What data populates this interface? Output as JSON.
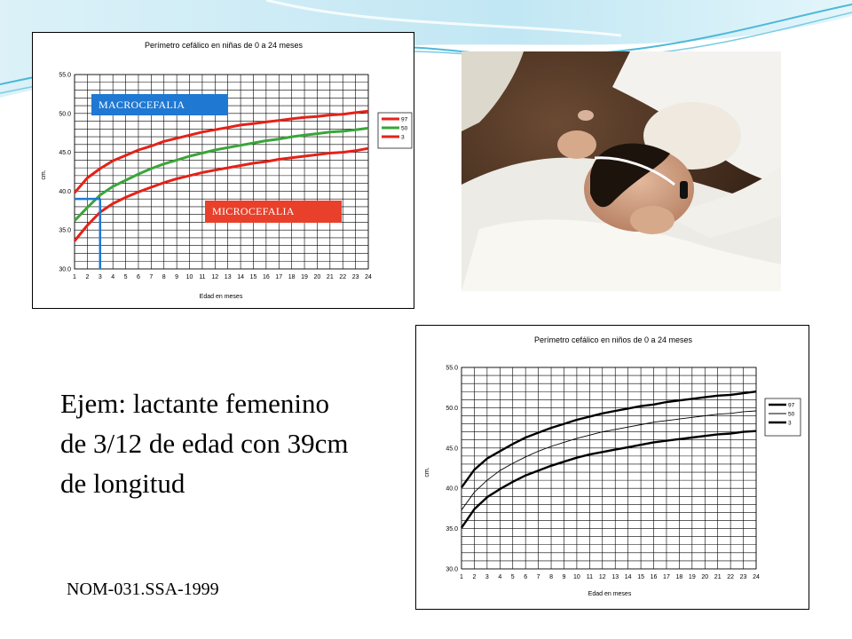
{
  "slide": {
    "example_text": "Ejem: lactante femenino de 3/12 de edad con 39cm de longitud",
    "norm": "NOM-031.SSA-1999",
    "callouts": {
      "macro": "MACROCEFALIA",
      "micro": "MICROCEFALIA"
    },
    "colors": {
      "macro_box": "#1f78d1",
      "micro_box": "#e8402a",
      "marker": "#1f78d1",
      "theme": "#4db8d8"
    }
  },
  "chart_data": [
    {
      "type": "line",
      "title": "Perímetro cefálico en niñas de 0 a 24 meses",
      "xlabel": "Edad en meses",
      "ylabel": "cm.",
      "x": [
        1,
        2,
        3,
        4,
        5,
        6,
        7,
        8,
        9,
        10,
        11,
        12,
        13,
        14,
        15,
        16,
        17,
        18,
        19,
        20,
        21,
        22,
        23,
        24
      ],
      "ylim": [
        30.0,
        55.0
      ],
      "yticks": [
        "30.0",
        "35.0",
        "40.0",
        "45.0",
        "50.0",
        "55.0"
      ],
      "grid": true,
      "legend": "right",
      "series": [
        {
          "name": "97",
          "color": "#e32219",
          "values": [
            39.8,
            41.7,
            42.9,
            43.9,
            44.6,
            45.3,
            45.8,
            46.4,
            46.8,
            47.2,
            47.6,
            47.9,
            48.2,
            48.5,
            48.7,
            48.9,
            49.1,
            49.3,
            49.5,
            49.6,
            49.8,
            49.9,
            50.1,
            50.3
          ]
        },
        {
          "name": "50",
          "color": "#3aa53a",
          "values": [
            36.2,
            37.9,
            39.5,
            40.6,
            41.4,
            42.2,
            42.9,
            43.5,
            44.0,
            44.5,
            44.9,
            45.3,
            45.6,
            45.9,
            46.2,
            46.5,
            46.7,
            47.0,
            47.2,
            47.4,
            47.6,
            47.7,
            47.9,
            48.1
          ]
        },
        {
          "name": "3",
          "color": "#e32219",
          "values": [
            33.6,
            35.6,
            37.3,
            38.4,
            39.2,
            39.9,
            40.5,
            41.1,
            41.6,
            42.0,
            42.4,
            42.7,
            43.0,
            43.3,
            43.6,
            43.8,
            44.1,
            44.3,
            44.5,
            44.7,
            44.9,
            45.0,
            45.2,
            45.5
          ]
        }
      ],
      "marker": {
        "x": 3,
        "y": 39
      }
    },
    {
      "type": "line",
      "title": "Perímetro cefálico en niños de 0 a 24 meses",
      "xlabel": "Edad en meses",
      "ylabel": "cm.",
      "x": [
        1,
        2,
        3,
        4,
        5,
        6,
        7,
        8,
        9,
        10,
        11,
        12,
        13,
        14,
        15,
        16,
        17,
        18,
        19,
        20,
        21,
        22,
        23,
        24
      ],
      "ylim": [
        30.0,
        55.0
      ],
      "yticks": [
        "30.0",
        "35.0",
        "40.0",
        "45.0",
        "50.0",
        "55.0"
      ],
      "grid": true,
      "legend": "right",
      "series": [
        {
          "name": "97",
          "color": "#000000",
          "values": [
            40.1,
            42.3,
            43.7,
            44.6,
            45.5,
            46.3,
            46.9,
            47.5,
            48.0,
            48.5,
            48.9,
            49.3,
            49.6,
            49.9,
            50.2,
            50.4,
            50.7,
            50.9,
            51.1,
            51.3,
            51.5,
            51.6,
            51.8,
            52.0
          ]
        },
        {
          "name": "50",
          "color": "#000000",
          "values": [
            37.3,
            39.5,
            41.0,
            42.2,
            43.1,
            43.9,
            44.6,
            45.2,
            45.7,
            46.2,
            46.6,
            47.0,
            47.3,
            47.6,
            47.9,
            48.2,
            48.4,
            48.6,
            48.8,
            49.0,
            49.2,
            49.3,
            49.5,
            49.6
          ]
        },
        {
          "name": "3",
          "color": "#000000",
          "values": [
            35.1,
            37.4,
            38.9,
            39.9,
            40.8,
            41.6,
            42.2,
            42.8,
            43.3,
            43.8,
            44.2,
            44.5,
            44.8,
            45.1,
            45.4,
            45.7,
            45.9,
            46.1,
            46.3,
            46.5,
            46.7,
            46.8,
            47.0,
            47.1
          ]
        }
      ]
    }
  ]
}
